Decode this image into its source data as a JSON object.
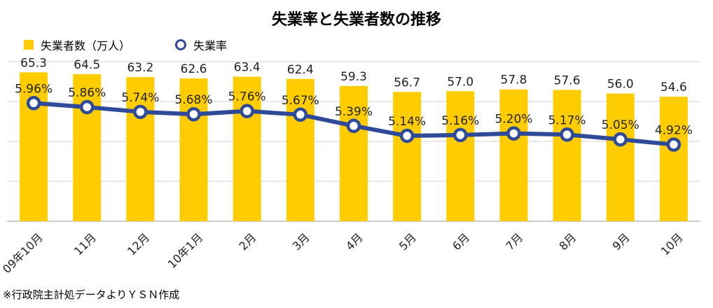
{
  "chart_data": {
    "type": "bar+line",
    "title": "失業率と失業者数の推移",
    "categories": [
      "09年10月",
      "11月",
      "12月",
      "10年1月",
      "2月",
      "3月",
      "4月",
      "5月",
      "6月",
      "7月",
      "8月",
      "9月",
      "10月"
    ],
    "series": [
      {
        "name": "失業者数（万人）",
        "type": "bar",
        "values": [
          65.3,
          64.5,
          63.2,
          62.6,
          63.4,
          62.4,
          59.3,
          56.7,
          57.0,
          57.8,
          57.6,
          56.0,
          54.6
        ],
        "labels": [
          "65.3",
          "64.5",
          "63.2",
          "62.6",
          "63.4",
          "62.4",
          "59.3",
          "56.7",
          "57.0",
          "57.8",
          "57.6",
          "56.0",
          "54.6"
        ],
        "color": "#FFCC00"
      },
      {
        "name": "失業率",
        "type": "line",
        "values": [
          5.96,
          5.86,
          5.74,
          5.68,
          5.76,
          5.67,
          5.39,
          5.14,
          5.16,
          5.2,
          5.17,
          5.05,
          4.92
        ],
        "labels": [
          "5.96%",
          "5.86%",
          "5.74%",
          "5.68%",
          "5.76%",
          "5.67%",
          "5.39%",
          "5.14%",
          "5.16%",
          "5.20%",
          "5.17%",
          "5.05%",
          "4.92%"
        ],
        "color": "#2E4A99"
      }
    ],
    "bar_ylim": [
      0,
      70
    ],
    "line_ylim": [
      3,
      7
    ],
    "grid": true,
    "legend": "top-left"
  },
  "footer": {
    "note": "※行政院主計処データよりＹＳＮ作成"
  }
}
